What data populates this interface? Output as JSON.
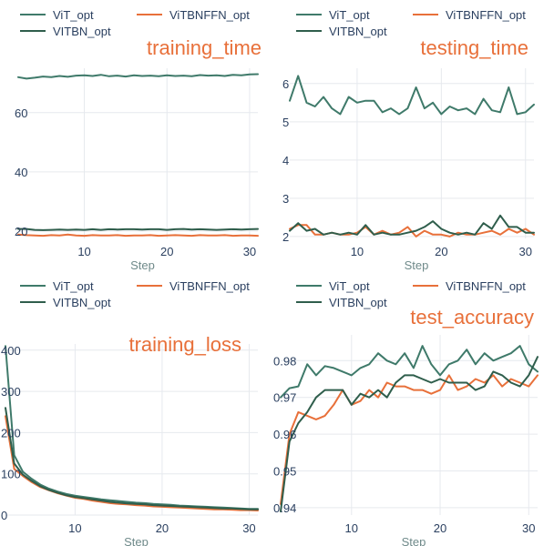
{
  "colors": {
    "vit": "#3f7a6a",
    "vitbnffn": "#e8703a",
    "vitbn": "#2f5e4c"
  },
  "legend": {
    "items": [
      {
        "key": "vit",
        "label": "ViT_opt"
      },
      {
        "key": "vitbnffn",
        "label": "ViTBNFFN_opt"
      },
      {
        "key": "vitbn",
        "label": "VITBN_opt"
      }
    ]
  },
  "chart_data": [
    {
      "type": "line",
      "title": "training_time",
      "xlabel": "Step",
      "x": [
        2,
        3,
        4,
        5,
        6,
        7,
        8,
        9,
        10,
        11,
        12,
        13,
        14,
        15,
        16,
        17,
        18,
        19,
        20,
        21,
        22,
        23,
        24,
        25,
        26,
        27,
        28,
        29,
        30,
        31
      ],
      "xlim": [
        2,
        31
      ],
      "ylim": [
        17.5,
        75
      ],
      "xticks": [
        10,
        20,
        30
      ],
      "yticks": [
        20,
        40,
        60
      ],
      "grid": true,
      "series": [
        {
          "key": "vit",
          "values": [
            72.0,
            71.5,
            71.8,
            72.2,
            72.0,
            72.4,
            72.1,
            72.5,
            72.6,
            72.4,
            72.8,
            72.3,
            72.5,
            72.2,
            72.6,
            72.4,
            72.5,
            72.3,
            72.6,
            72.4,
            72.5,
            72.3,
            72.7,
            72.5,
            72.6,
            72.4,
            72.8,
            72.6,
            72.9,
            73.0
          ]
        },
        {
          "key": "vitbn",
          "values": [
            20.7,
            20.7,
            20.4,
            20.3,
            20.4,
            20.5,
            20.4,
            20.5,
            20.4,
            20.6,
            20.4,
            20.6,
            20.5,
            20.6,
            20.6,
            20.5,
            20.6,
            20.6,
            20.4,
            20.6,
            20.7,
            20.5,
            20.6,
            20.5,
            20.4,
            20.5,
            20.6,
            20.5,
            20.6,
            20.7
          ]
        },
        {
          "key": "vitbnffn",
          "values": [
            18.8,
            18.6,
            18.5,
            18.4,
            18.6,
            18.5,
            18.8,
            18.5,
            18.4,
            18.6,
            18.5,
            18.5,
            18.6,
            18.4,
            18.5,
            18.5,
            18.6,
            18.4,
            18.5,
            18.6,
            18.5,
            18.4,
            18.6,
            18.5,
            18.5,
            18.6,
            18.4,
            18.5,
            18.5,
            18.4
          ]
        }
      ]
    },
    {
      "type": "line",
      "title": "testing_time",
      "xlabel": "Step",
      "x": [
        2,
        3,
        4,
        5,
        6,
        7,
        8,
        9,
        10,
        11,
        12,
        13,
        14,
        15,
        16,
        17,
        18,
        19,
        20,
        21,
        22,
        23,
        24,
        25,
        26,
        27,
        28,
        29,
        30,
        31
      ],
      "xlim": [
        2,
        31
      ],
      "ylim": [
        1.95,
        6.4
      ],
      "xticks": [
        10,
        20,
        30
      ],
      "yticks": [
        2,
        3,
        4,
        5,
        6
      ],
      "grid": true,
      "series": [
        {
          "key": "vit",
          "values": [
            5.55,
            6.2,
            5.5,
            5.4,
            5.65,
            5.35,
            5.2,
            5.65,
            5.5,
            5.55,
            5.55,
            5.25,
            5.35,
            5.2,
            5.35,
            5.9,
            5.35,
            5.5,
            5.2,
            5.4,
            5.3,
            5.35,
            5.2,
            5.6,
            5.3,
            5.25,
            5.9,
            5.2,
            5.25,
            5.45
          ]
        },
        {
          "key": "vitbnffn",
          "values": [
            2.2,
            2.3,
            2.3,
            2.05,
            2.05,
            2.1,
            2.05,
            2.05,
            2.1,
            2.25,
            2.05,
            2.15,
            2.05,
            2.1,
            2.25,
            2.0,
            2.15,
            2.05,
            2.05,
            2.0,
            2.1,
            2.05,
            2.05,
            2.1,
            2.15,
            2.05,
            2.2,
            2.1,
            2.2,
            2.05
          ]
        },
        {
          "key": "vitbn",
          "values": [
            2.15,
            2.35,
            2.15,
            2.2,
            2.05,
            2.1,
            2.05,
            2.1,
            2.05,
            2.3,
            2.05,
            2.1,
            2.05,
            2.05,
            2.1,
            2.15,
            2.25,
            2.4,
            2.2,
            2.1,
            2.05,
            2.1,
            2.05,
            2.35,
            2.2,
            2.55,
            2.25,
            2.25,
            2.1,
            2.1
          ]
        }
      ]
    },
    {
      "type": "line",
      "title": "training_loss",
      "xlabel": "Step",
      "x": [
        2,
        3,
        4,
        5,
        6,
        7,
        8,
        9,
        10,
        11,
        12,
        13,
        14,
        15,
        16,
        17,
        18,
        19,
        20,
        21,
        22,
        23,
        24,
        25,
        26,
        27,
        28,
        29,
        30,
        31
      ],
      "xlim": [
        2,
        31
      ],
      "ylim": [
        0,
        415
      ],
      "xticks": [
        10,
        20,
        30
      ],
      "yticks": [
        0,
        100,
        200,
        300,
        400
      ],
      "grid": true,
      "series": [
        {
          "key": "vit",
          "values": [
            410,
            145,
            105,
            88,
            74,
            64,
            57,
            51,
            47,
            44,
            41,
            38,
            36,
            34,
            32,
            30,
            29,
            27,
            26,
            25,
            23,
            22,
            21,
            20,
            19,
            18,
            17,
            16,
            15,
            15
          ]
        },
        {
          "key": "vitbnffn",
          "values": [
            240,
            112,
            95,
            80,
            68,
            60,
            53,
            47,
            42,
            39,
            35,
            32,
            29,
            27,
            26,
            24,
            23,
            21,
            20,
            19,
            18,
            17,
            16,
            15,
            14,
            14,
            13,
            12,
            12,
            11
          ]
        },
        {
          "key": "vitbn",
          "values": [
            260,
            125,
            98,
            83,
            70,
            61,
            54,
            48,
            44,
            41,
            38,
            35,
            32,
            30,
            28,
            27,
            26,
            24,
            23,
            22,
            21,
            20,
            19,
            18,
            17,
            16,
            16,
            15,
            14,
            14
          ]
        }
      ]
    },
    {
      "type": "line",
      "title": "test_accuracy",
      "xlabel": "Step",
      "x": [
        2,
        3,
        4,
        5,
        6,
        7,
        8,
        9,
        10,
        11,
        12,
        13,
        14,
        15,
        16,
        17,
        18,
        19,
        20,
        21,
        22,
        23,
        24,
        25,
        26,
        27,
        28,
        29,
        30,
        31
      ],
      "xlim": [
        2,
        31
      ],
      "ylim": [
        0.938,
        0.987
      ],
      "xticks": [
        10,
        20,
        30
      ],
      "yticks": [
        0.94,
        0.95,
        0.96,
        0.97,
        0.98
      ],
      "grid": true,
      "series": [
        {
          "key": "vit",
          "values": [
            0.97,
            0.9725,
            0.973,
            0.979,
            0.976,
            0.9785,
            0.978,
            0.977,
            0.976,
            0.978,
            0.979,
            0.982,
            0.98,
            0.979,
            0.982,
            0.978,
            0.984,
            0.979,
            0.976,
            0.979,
            0.98,
            0.983,
            0.979,
            0.982,
            0.98,
            0.981,
            0.982,
            0.984,
            0.979,
            0.977
          ]
        },
        {
          "key": "vitbnffn",
          "values": [
            0.941,
            0.96,
            0.966,
            0.965,
            0.964,
            0.965,
            0.968,
            0.972,
            0.968,
            0.969,
            0.972,
            0.97,
            0.974,
            0.973,
            0.973,
            0.972,
            0.972,
            0.971,
            0.972,
            0.976,
            0.972,
            0.973,
            0.975,
            0.974,
            0.976,
            0.973,
            0.975,
            0.974,
            0.973,
            0.976
          ]
        },
        {
          "key": "vitbn",
          "values": [
            0.939,
            0.958,
            0.963,
            0.966,
            0.97,
            0.972,
            0.972,
            0.972,
            0.968,
            0.971,
            0.97,
            0.972,
            0.97,
            0.974,
            0.976,
            0.976,
            0.975,
            0.974,
            0.975,
            0.974,
            0.974,
            0.974,
            0.972,
            0.973,
            0.977,
            0.976,
            0.974,
            0.973,
            0.976,
            0.981
          ]
        }
      ]
    }
  ]
}
